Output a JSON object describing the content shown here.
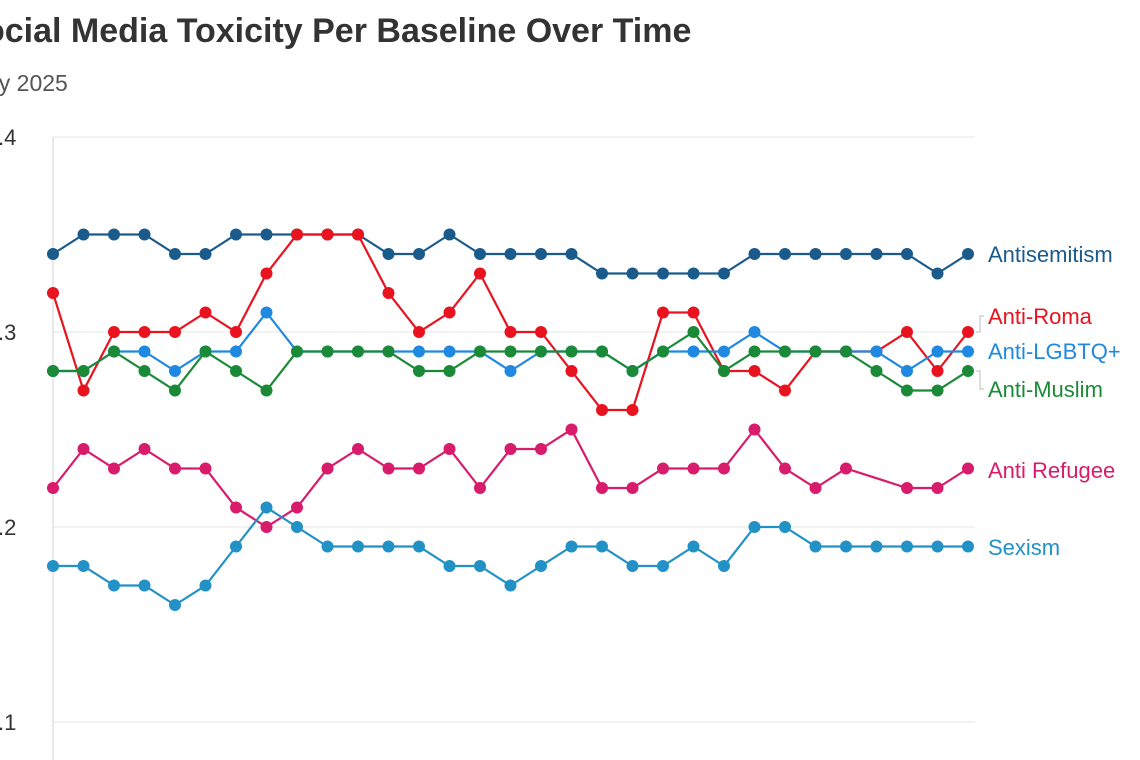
{
  "chart_data": {
    "type": "line",
    "title": "ocial Media Toxicity Per Baseline Over Time",
    "subtitle": "ay 2025",
    "xlabel": "",
    "ylabel": "",
    "ylim": [
      0.1,
      0.4
    ],
    "ytick_labels": [
      ".1",
      ".2",
      ".3",
      ".4"
    ],
    "grid": true,
    "legend": "end-of-line labels",
    "x": [
      1,
      2,
      3,
      4,
      5,
      6,
      7,
      8,
      9,
      10,
      11,
      12,
      13,
      14,
      15,
      16,
      17,
      18,
      19,
      20,
      21,
      22,
      23,
      24,
      25,
      26,
      27,
      28,
      29,
      30,
      31
    ],
    "series": [
      {
        "name": "Antisemitism",
        "color": "#1a5b8c",
        "values": [
          0.34,
          0.35,
          0.35,
          0.35,
          0.34,
          0.34,
          0.35,
          0.35,
          0.35,
          0.35,
          0.35,
          0.34,
          0.34,
          0.35,
          0.34,
          0.34,
          0.34,
          0.34,
          0.33,
          0.33,
          0.33,
          0.33,
          0.33,
          0.34,
          0.34,
          0.34,
          0.34,
          0.34,
          0.34,
          0.33,
          0.34
        ]
      },
      {
        "name": "Anti-Roma",
        "color": "#e8131f",
        "values": [
          0.32,
          0.27,
          0.3,
          0.3,
          0.3,
          0.31,
          0.3,
          0.33,
          0.35,
          0.35,
          0.35,
          0.32,
          0.3,
          0.31,
          0.33,
          0.3,
          0.3,
          0.28,
          0.26,
          0.26,
          0.31,
          0.31,
          0.28,
          0.28,
          0.27,
          0.29,
          0.29,
          0.29,
          0.3,
          0.28,
          0.3
        ]
      },
      {
        "name": "Anti-LGBTQ+",
        "color": "#1f88e0",
        "values": [
          0.28,
          0.28,
          0.29,
          0.29,
          0.28,
          0.29,
          0.29,
          0.31,
          0.29,
          0.29,
          0.29,
          0.29,
          0.29,
          0.29,
          0.29,
          0.28,
          0.29,
          0.29,
          0.29,
          0.28,
          0.29,
          0.29,
          0.29,
          0.3,
          0.29,
          0.29,
          0.29,
          0.29,
          0.28,
          0.29,
          0.29
        ]
      },
      {
        "name": "Anti-Muslim",
        "color": "#1a8a38",
        "values": [
          0.28,
          0.28,
          0.29,
          0.28,
          0.27,
          0.29,
          0.28,
          0.27,
          0.29,
          0.29,
          0.29,
          0.29,
          0.28,
          0.28,
          0.29,
          0.29,
          0.29,
          0.29,
          0.29,
          0.28,
          0.29,
          0.3,
          0.28,
          0.29,
          0.29,
          0.29,
          0.29,
          0.28,
          0.27,
          0.27,
          0.28
        ]
      },
      {
        "name": "Anti Refugee",
        "color": "#d81b6a",
        "values": [
          0.22,
          0.24,
          0.23,
          0.24,
          0.23,
          0.23,
          0.21,
          0.2,
          0.21,
          0.23,
          0.24,
          0.23,
          0.23,
          0.24,
          0.22,
          0.24,
          0.24,
          0.25,
          0.22,
          0.22,
          0.23,
          0.23,
          0.23,
          0.25,
          0.23,
          0.22,
          0.23,
          null,
          0.22,
          0.22,
          0.23
        ]
      },
      {
        "name": "Sexism",
        "color": "#2291c6",
        "values": [
          0.18,
          0.18,
          0.17,
          0.17,
          0.16,
          0.17,
          0.19,
          0.21,
          0.2,
          0.19,
          0.19,
          0.19,
          0.19,
          0.18,
          0.18,
          0.17,
          0.18,
          0.19,
          0.19,
          0.18,
          0.18,
          0.19,
          0.18,
          0.2,
          0.2,
          0.19,
          0.19,
          0.19,
          0.19,
          0.19,
          0.19
        ]
      }
    ],
    "end_labels": [
      {
        "text": "Antisemitism",
        "color": "#1a5b8c"
      },
      {
        "text": "Anti-Roma",
        "color": "#e8131f"
      },
      {
        "text": "Anti-LGBTQ+",
        "color": "#1f88e0"
      },
      {
        "text": "Anti-Muslim",
        "color": "#1a8a38"
      },
      {
        "text": "Anti Refugee",
        "color": "#d81b6a"
      },
      {
        "text": "Sexism",
        "color": "#2291c6"
      }
    ]
  }
}
